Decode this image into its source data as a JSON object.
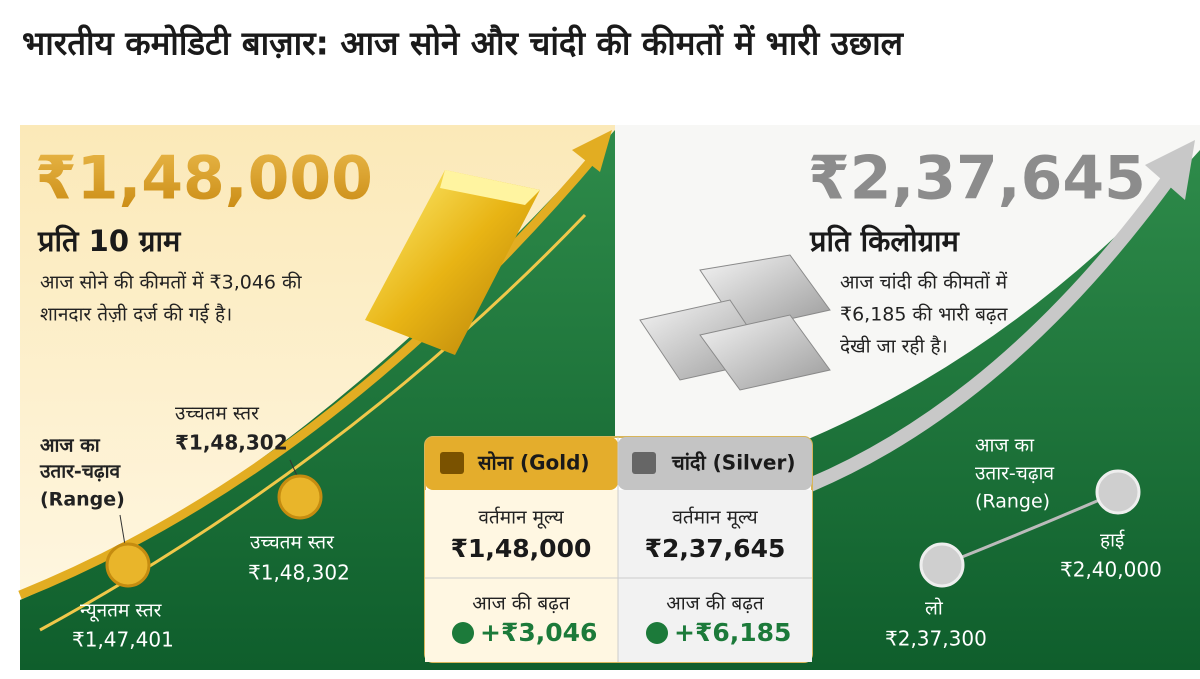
{
  "title": "भारतीय कमोडिटी बाज़ार: आज सोने और चांदी की कीमतों में भारी उछाल",
  "gold": {
    "price": "₹1,48,000",
    "unit": "प्रति 10 ग्राम",
    "description": [
      "आज सोने की कीमतों में ₹3,046 की",
      "शानदार तेज़ी दर्ज की गई है।"
    ],
    "range_label": [
      "आज का",
      "उतार-चढ़ाव",
      "(Range)"
    ],
    "high_top": {
      "label": "उच्चतम स्तर",
      "value": "₹1,48,302"
    },
    "high": {
      "label": "उच्चतम स्तर",
      "value": "₹1,48,302"
    },
    "low": {
      "label": "न्यूनतम स्तर",
      "value": "₹1,47,401"
    }
  },
  "silver": {
    "price": "₹2,37,645",
    "unit": "प्रति किलोग्राम",
    "description": [
      "आज चांदी की कीमतों में",
      "₹6,185 की भारी बढ़त",
      "देखी जा रही है।"
    ],
    "range_label": [
      "आज का",
      "उतार-चढ़ाव",
      "(Range)"
    ],
    "high": {
      "label": "हाई",
      "value": "₹2,40,000"
    },
    "low": {
      "label": "लो",
      "value": "₹2,37,300"
    }
  },
  "table": {
    "headers": [
      "सोना (Gold)",
      "चांदी (Silver)"
    ],
    "rows": [
      [
        "वर्तमान मूल्य",
        "₹1,48,000",
        "वर्तमान मूल्य",
        "₹2,37,645"
      ],
      [
        "आज की बढ़त",
        "+₹3,046",
        "आज की बढ़त",
        "+₹6,185"
      ]
    ]
  }
}
